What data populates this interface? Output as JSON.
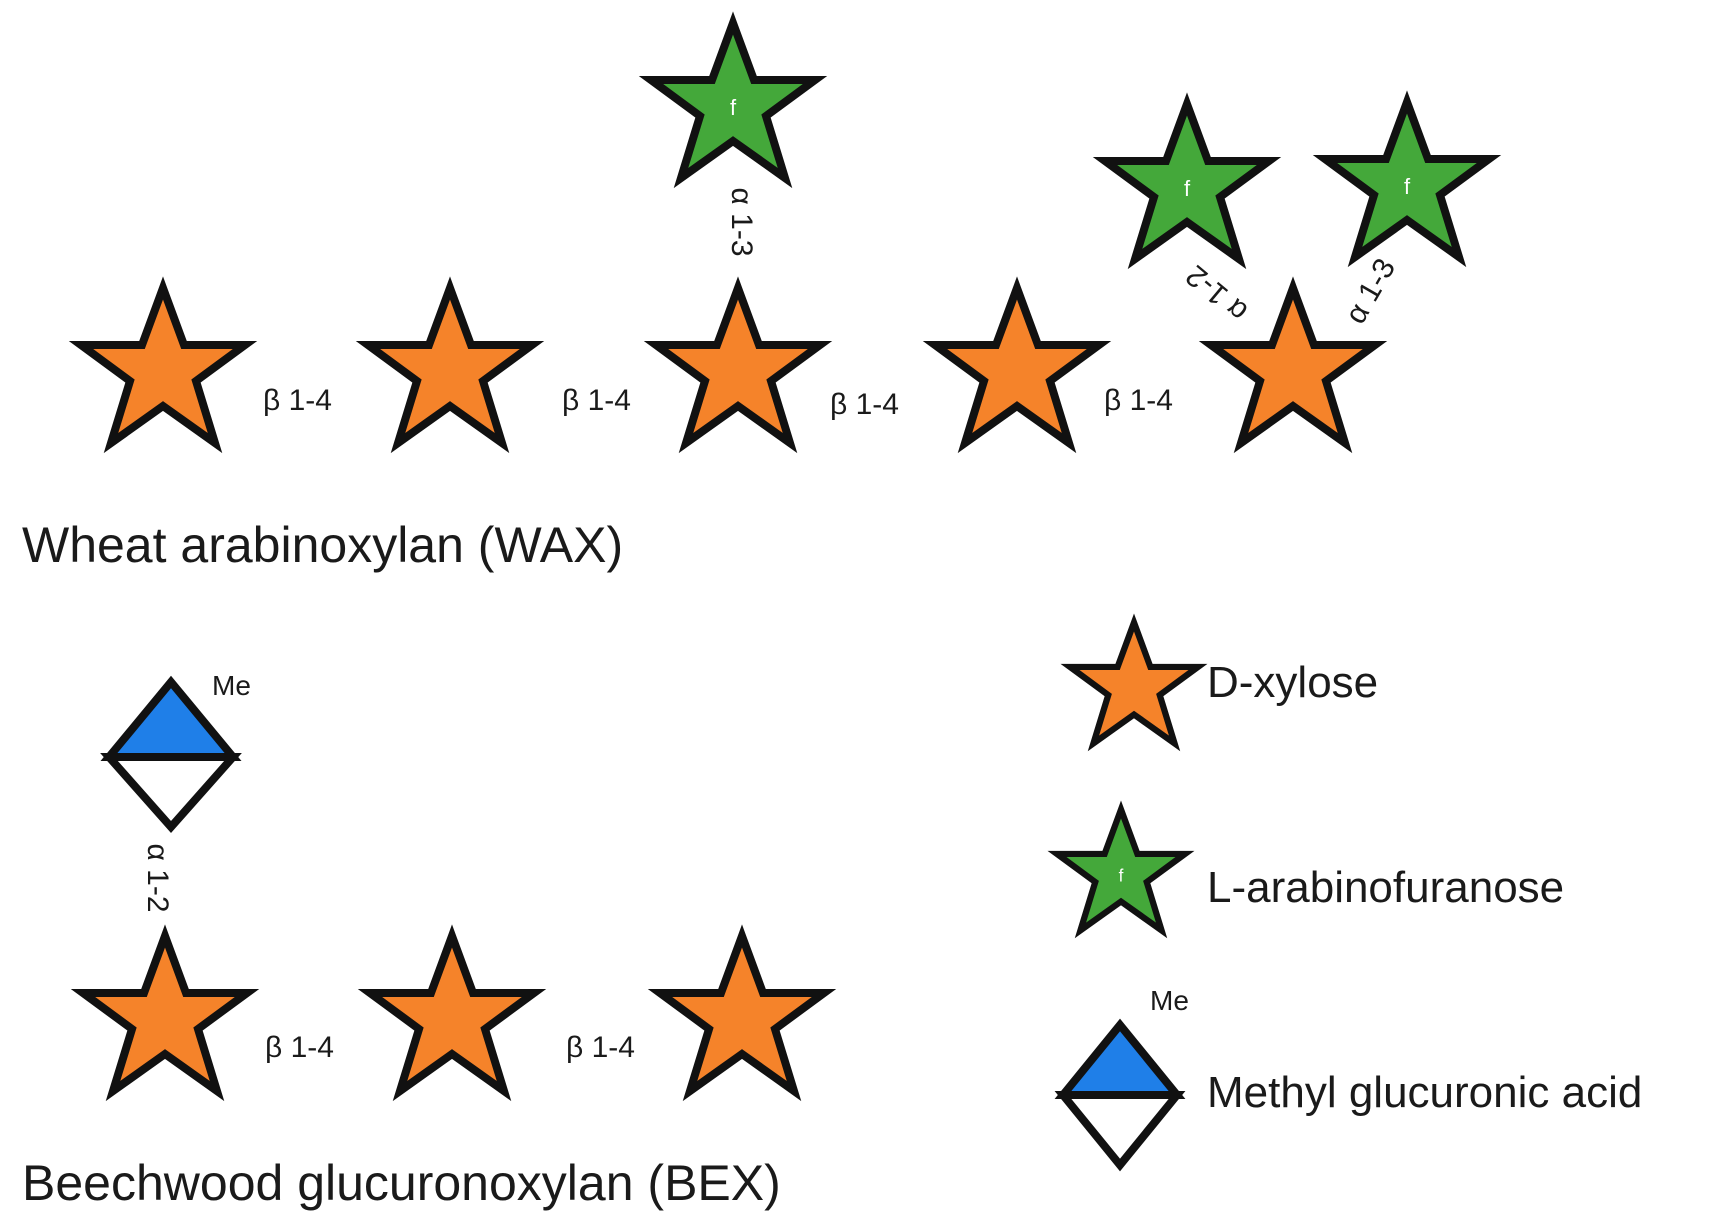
{
  "colors": {
    "xylose": "#f5832a",
    "arabinofuranose": "#44a83a",
    "glucuronic_top": "#1f7fe8",
    "glucuronic_bottom": "#ffffff",
    "outline": "#111111"
  },
  "icons": {
    "xylose": "orange-star-icon",
    "arabinofuranose": "green-star-icon",
    "methyl_glucuronic_acid": "half-blue-diamond-icon"
  },
  "wax": {
    "title": "Wheat arabinoxylan (WAX)",
    "backbone_links": [
      "β 1-4",
      "β 1-4",
      "β 1-4",
      "β 1-4"
    ],
    "branch_links": [
      "α 1-3",
      "α 1-2",
      "α 1-3"
    ],
    "ring_label": "f"
  },
  "bex": {
    "title": "Beechwood glucuronoxylan (BEX)",
    "backbone_links": [
      "β 1-4",
      "β 1-4"
    ],
    "branch_link": "α 1-2",
    "methyl_label": "Me"
  },
  "legend": {
    "xylose": "D-xylose",
    "arabinofuranose": "L-arabinofuranose",
    "arabinofuranose_ring": "f",
    "methyl_label": "Me",
    "glucuronic": "Methyl glucuronic acid"
  }
}
